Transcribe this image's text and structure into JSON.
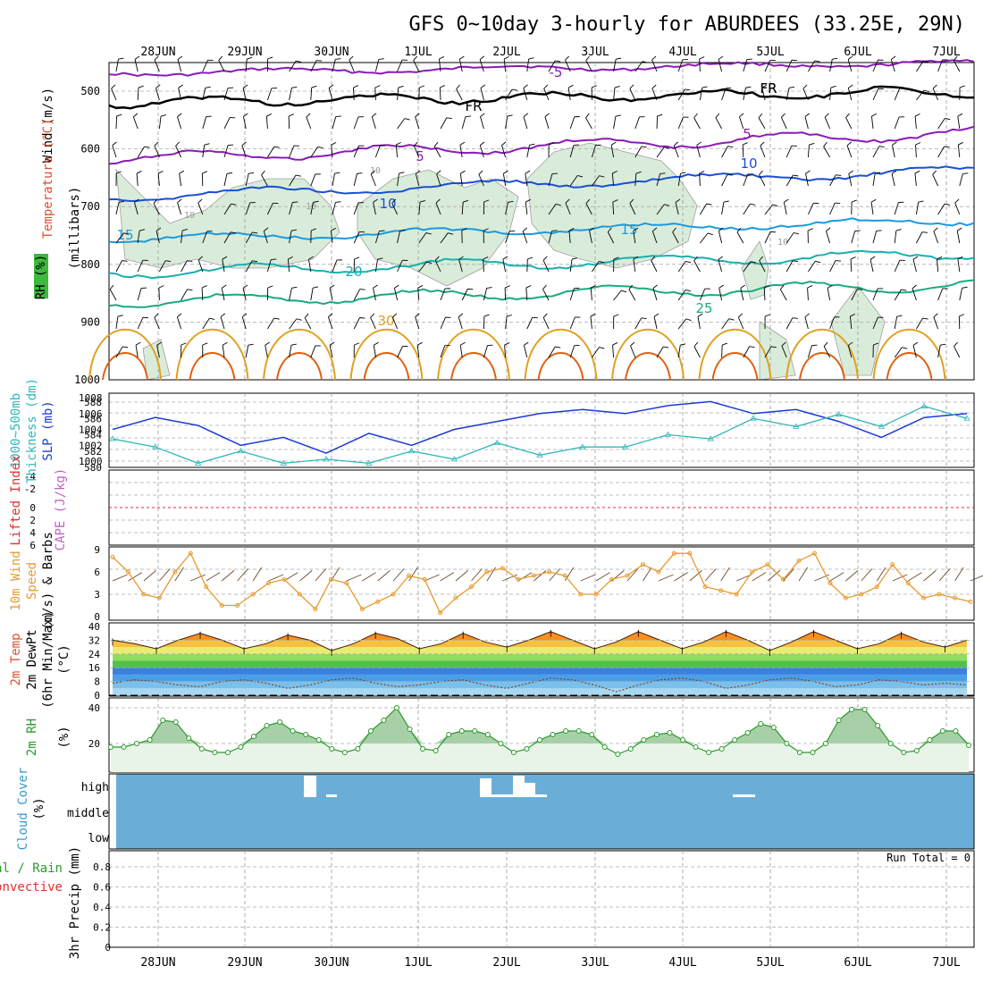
{
  "title": "GFS 0~10day 3-hourly for ABURDEES (33.25E, 29N)",
  "dates": [
    "28JUN",
    "29JUN",
    "30JUN",
    "1JUL",
    "2JUL",
    "3JUL",
    "4JUL",
    "5JUL",
    "6JUL",
    "7JUL"
  ],
  "colors": {
    "frame": "#000000",
    "grid": "#b0b0b0",
    "rh_fill": "#d9ecd9",
    "temp_purple": "#8a1ab8",
    "temp_black": "#000000",
    "temp_blue": "#1a4fd6",
    "temp_lightblue": "#1a9ae0",
    "temp_teal": "#17b0b0",
    "temp_green": "#1aaa80",
    "temp_orange": "#e0a020",
    "temp_darkorange": "#e06010",
    "slp": "#1a3ad6",
    "thickness": "#30b8b8",
    "lifted_index": "#e03030",
    "wind10m": "#e89a30",
    "rh2m": "#2a9a2a",
    "cloud": "#6aaed8"
  },
  "panels": {
    "upper": {
      "label_wind": "Wind (m/s)",
      "label_temp": "Temperature (°C)",
      "label_rh": "RH (%)",
      "label_mb": "(millibars)",
      "yticks": [
        "500",
        "600",
        "700",
        "800",
        "900",
        "1000"
      ],
      "isotherm_labels": [
        "-5",
        "FR",
        "FR",
        "FR",
        "5",
        "5",
        "10",
        "10",
        "15",
        "15",
        "20",
        "25",
        "30"
      ],
      "rh_labels": [
        "10",
        "10",
        "10",
        "10"
      ]
    },
    "slp": {
      "label_thk": "1000~500mb",
      "label_thk2": "Thickness (dm)",
      "label_slp": "SLP (mb)",
      "left_ticks": [
        "588",
        "586",
        "584",
        "582",
        "580"
      ],
      "right_ticks": [
        "1008",
        "1006",
        "1004",
        "1002",
        "1000"
      ]
    },
    "cape": {
      "label_li": "Lifted Index",
      "label_cape": "CAPE (J/kg)",
      "ticks": [
        "-4",
        "-2",
        "0",
        "2",
        "4",
        "6"
      ]
    },
    "wind": {
      "label_a": "10m Wind",
      "label_b": "Speed",
      "label_c": "(m/s) & Barbs",
      "ticks": [
        "9",
        "6",
        "3",
        "0"
      ]
    },
    "temp": {
      "label_a": "2m Temp",
      "label_b": "2m DewPt",
      "label_c": "(6hr Min/Max)",
      "label_unit": "(°C)",
      "ticks": [
        "40",
        "32",
        "24",
        "16",
        "8",
        "0"
      ]
    },
    "rh": {
      "label": "2m RH",
      "unit": "(%)",
      "ticks": [
        "40",
        "20"
      ]
    },
    "cloud": {
      "label": "Cloud Cover",
      "unit": "(%)",
      "levels": [
        "high",
        "middle",
        "low"
      ]
    },
    "precip": {
      "label_a": "Total / Rain",
      "label_b": "Convective",
      "label_c": "3hr Precip (mm)",
      "ticks": [
        "0.8",
        "0.6",
        "0.4",
        "0.2",
        "0"
      ],
      "run_total": "Run Total = 0"
    }
  },
  "chart_data": [
    {
      "type": "line",
      "title": "GFS 0~10day 3-hourly for ABURDEES (33.25E, 29N)",
      "panel": "SLP and 1000-500mb thickness",
      "x": [
        "27JUN 12Z",
        "28JUN",
        "28JUN 12Z",
        "29JUN",
        "29JUN 12Z",
        "30JUN",
        "30JUN 12Z",
        "1JUL",
        "1JUL 12Z",
        "2JUL",
        "2JUL 12Z",
        "3JUL",
        "3JUL 12Z",
        "4JUL",
        "4JUL 12Z",
        "5JUL",
        "5JUL 12Z",
        "6JUL",
        "6JUL 12Z",
        "7JUL",
        "7JUL 6Z"
      ],
      "series": [
        {
          "name": "SLP (mb)",
          "values": [
            1004,
            1005.5,
            1004.5,
            1002,
            1003,
            1001,
            1003.5,
            1002,
            1004,
            1005,
            1006,
            1006.5,
            1006,
            1007,
            1007.5,
            1006,
            1006.5,
            1005,
            1003,
            1005.5,
            1006
          ]
        },
        {
          "name": "Thickness (dm)",
          "values": [
            583.5,
            582.5,
            580.5,
            582,
            580.5,
            581,
            580.5,
            582,
            581,
            583,
            581.5,
            582.5,
            582.5,
            584,
            583.5,
            586,
            585,
            586.5,
            585,
            587.5,
            586
          ]
        }
      ],
      "ylim_left": [
        580,
        588
      ],
      "ylim_right": [
        1000,
        1008
      ]
    },
    {
      "type": "line",
      "panel": "10m Wind Speed",
      "ylabel": "(m/s)",
      "ylim": [
        0,
        9
      ],
      "series": [
        {
          "name": "10m Wind Speed",
          "values": [
            8,
            6,
            3,
            2.5,
            6,
            8.5,
            4,
            1.5,
            1.5,
            3,
            4.5,
            5,
            3,
            1,
            5,
            4.5,
            1,
            2,
            3,
            5.5,
            5,
            0.5,
            2.5,
            4,
            6,
            6.5,
            5,
            5.5,
            6,
            5.5,
            3,
            3,
            5,
            5.5,
            7,
            6,
            8.5,
            8.5,
            4,
            3.5,
            3,
            6,
            7,
            5,
            7.5,
            8.5,
            4.5,
            2.5,
            3,
            4,
            7,
            4.5,
            2.5,
            3,
            2.5,
            2
          ]
        }
      ]
    },
    {
      "type": "area",
      "panel": "2m Temp",
      "ylabel": "(°C)",
      "ylim": [
        0,
        40
      ],
      "series": [
        {
          "name": "2m Temp",
          "values": [
            32,
            30,
            27,
            32,
            36,
            32,
            27,
            30,
            35,
            32,
            26,
            30,
            36,
            33,
            27,
            30,
            36,
            31,
            28,
            32,
            37,
            32,
            27,
            31,
            37,
            32,
            27,
            31,
            37,
            32,
            26,
            31,
            37,
            32,
            27,
            30,
            36,
            31,
            28,
            32
          ]
        },
        {
          "name": "2m DewPt",
          "values": [
            7,
            9,
            8,
            6,
            5,
            8,
            9,
            7,
            4,
            6,
            9,
            10,
            7,
            5,
            6,
            8,
            9,
            6,
            4,
            7,
            10,
            9,
            6,
            2,
            6,
            9,
            10,
            8,
            4,
            6,
            9,
            10,
            8,
            5,
            6,
            9,
            8,
            6,
            7,
            6
          ]
        }
      ]
    },
    {
      "type": "area",
      "panel": "2m RH",
      "ylabel": "(%)",
      "ylim": [
        5,
        42
      ],
      "series": [
        {
          "name": "2m RH",
          "values": [
            18,
            18,
            20,
            22,
            33,
            32,
            23,
            17,
            15,
            15,
            18,
            24,
            30,
            32,
            27,
            25,
            22,
            17,
            15,
            17,
            27,
            33,
            40,
            28,
            17,
            16,
            25,
            27,
            27,
            25,
            20,
            15,
            17,
            22,
            25,
            27,
            27,
            25,
            18,
            14,
            17,
            22,
            25,
            26,
            22,
            18,
            15,
            17,
            22,
            26,
            31,
            29,
            20,
            15,
            15,
            20,
            33,
            39,
            39,
            30,
            20,
            15,
            16,
            22,
            27,
            27,
            19
          ]
        }
      ]
    },
    {
      "type": "table",
      "panel": "Cloud Cover",
      "series": [
        {
          "name": "high",
          "values": [
            "present at 29JUN 18Z",
            "present at 30JUN",
            "present 1JUL 18Z to 2JUL 12Z",
            "present at 4JUL 18Z"
          ]
        }
      ]
    }
  ]
}
